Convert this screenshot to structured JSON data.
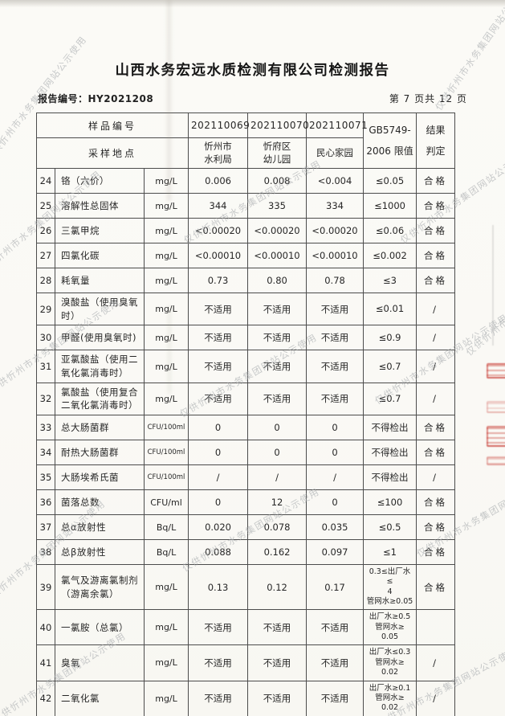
{
  "page": {
    "title": "山西水务宏远水质检测有限公司检测报告",
    "report_no_label": "报告编号：",
    "report_no": "HY2021208",
    "page_indicator": "第 7 页共 12 页"
  },
  "watermark": {
    "text": "仅供忻州市水务集团网站公示使用",
    "color": "#a7abae"
  },
  "stamp": {
    "color": "#c6372d"
  },
  "table": {
    "header": {
      "sample_no_label": "样品编号",
      "location_label": "采样地点",
      "sample_ids": [
        "202110069",
        "202110070",
        "202110071"
      ],
      "locations": [
        "忻州市\n水利局",
        "忻府区\n幼儿园",
        "民心家园"
      ],
      "limit_label": "GB5749-\n2006 限值",
      "result_label": "结果\n判定"
    },
    "rows": [
      {
        "no": "24",
        "name": "铬（六价）",
        "unit": "mg/L",
        "v": [
          "0.006",
          "0.008",
          "<0.004"
        ],
        "limit": "≤0.05",
        "result": "合格"
      },
      {
        "no": "25",
        "name": "溶解性总固体",
        "unit": "mg/L",
        "v": [
          "344",
          "335",
          "334"
        ],
        "limit": "≤1000",
        "result": "合格"
      },
      {
        "no": "26",
        "name": "三氯甲烷",
        "unit": "mg/L",
        "v": [
          "<0.00020",
          "<0.00020",
          "<0.00020"
        ],
        "limit": "≤0.06",
        "result": "合格"
      },
      {
        "no": "27",
        "name": "四氯化碳",
        "unit": "mg/L",
        "v": [
          "<0.00010",
          "<0.00010",
          "<0.00010"
        ],
        "limit": "≤0.002",
        "result": "合格"
      },
      {
        "no": "28",
        "name": "耗氧量",
        "unit": "mg/L",
        "v": [
          "0.73",
          "0.80",
          "0.78"
        ],
        "limit": "≤3",
        "result": "合格"
      },
      {
        "no": "29",
        "name": "溴酸盐（使用臭氧时）",
        "unit": "mg/L",
        "v": [
          "不适用",
          "不适用",
          "不适用"
        ],
        "limit": "≤0.01",
        "result": "/"
      },
      {
        "no": "30",
        "name": "甲醛(使用臭氧时)",
        "unit": "mg/L",
        "v": [
          "不适用",
          "不适用",
          "不适用"
        ],
        "limit": "≤0.9",
        "result": "/"
      },
      {
        "no": "31",
        "name": "亚氯酸盐（使用二氧化氯消毒时）",
        "unit": "mg/L",
        "v": [
          "不适用",
          "不适用",
          "不适用"
        ],
        "limit": "≤0.7",
        "result": "/"
      },
      {
        "no": "32",
        "name": "氯酸盐（使用复合二氧化氯消毒时）",
        "unit": "mg/L",
        "v": [
          "不适用",
          "不适用",
          "不适用"
        ],
        "limit": "≤0.7",
        "result": "/"
      },
      {
        "no": "33",
        "name": "总大肠菌群",
        "unit": "CFU/100ml",
        "v": [
          "0",
          "0",
          "0"
        ],
        "limit": "不得检出",
        "result": "合格"
      },
      {
        "no": "34",
        "name": "耐热大肠菌群",
        "unit": "CFU/100ml",
        "v": [
          "0",
          "0",
          "0"
        ],
        "limit": "不得检出",
        "result": "合格"
      },
      {
        "no": "35",
        "name": "大肠埃希氏菌",
        "unit": "CFU/100ml",
        "v": [
          "/",
          "/",
          "/"
        ],
        "limit": "不得检出",
        "result": "/"
      },
      {
        "no": "36",
        "name": "菌落总数",
        "unit": "CFU/ml",
        "v": [
          "0",
          "12",
          "0"
        ],
        "limit": "≤100",
        "result": "合格"
      },
      {
        "no": "37",
        "name": "总α放射性",
        "unit": "Bq/L",
        "v": [
          "0.020",
          "0.078",
          "0.035"
        ],
        "limit": "≤0.5",
        "result": "合格"
      },
      {
        "no": "38",
        "name": "总β放射性",
        "unit": "Bq/L",
        "v": [
          "0.088",
          "0.162",
          "0.097"
        ],
        "limit": "≤1",
        "result": "合格"
      },
      {
        "no": "39",
        "name": "氯气及游离氯制剂（游离余氯）",
        "unit": "mg/L",
        "v": [
          "0.13",
          "0.12",
          "0.17"
        ],
        "limit": "0.3≤出厂水≤\n4\n管网水≥0.05",
        "result": "合格"
      },
      {
        "no": "40",
        "name": "一氯胺（总氯）",
        "unit": "mg/L",
        "v": [
          "不适用",
          "不适用",
          "不适用"
        ],
        "limit": "出厂水≥0.5\n管网水≥\n0.05",
        "result": ""
      },
      {
        "no": "41",
        "name": "臭氧",
        "unit": "mg/L",
        "v": [
          "不适用",
          "不适用",
          "不适用"
        ],
        "limit": "出厂水≤0.3\n管网水≥\n0.02",
        "result": "/"
      },
      {
        "no": "42",
        "name": "二氧化氯",
        "unit": "mg/L",
        "v": [
          "不适用",
          "不适用",
          "不适用"
        ],
        "limit": "出厂水≥0.1\n管网水≥\n0.02",
        "result": "/"
      }
    ]
  }
}
